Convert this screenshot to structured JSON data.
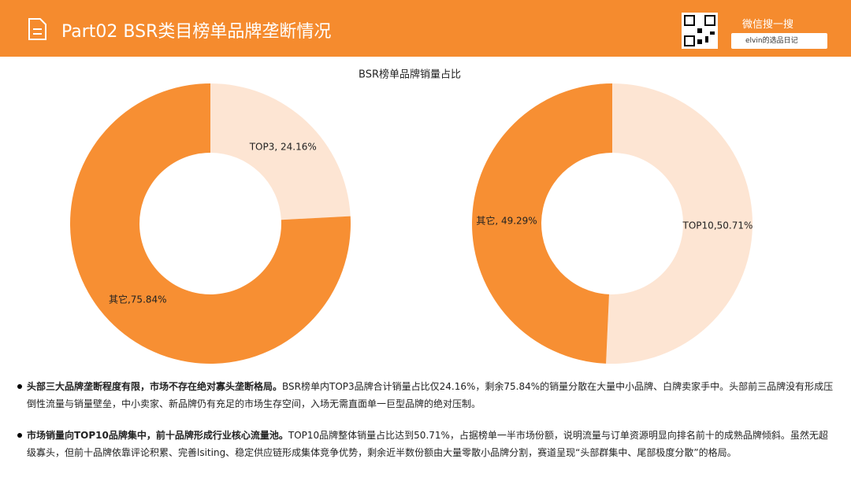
{
  "header": {
    "title": "Part02 BSR类目榜单品牌垄断情况",
    "wechat": "微信搜一搜",
    "search": "elvin的选品日记"
  },
  "chart_data": [
    {
      "type": "pie",
      "title": "BSR榜单品牌销量占比",
      "values": [
        24.16,
        75.84
      ],
      "value_labels": [
        "TOP3, 24.16%",
        "其它,75.84%"
      ],
      "colors": [
        "#fde5d3",
        "#f78f33"
      ]
    },
    {
      "type": "pie",
      "values": [
        50.71,
        49.29
      ],
      "value_labels": [
        "TOP10,50.71%",
        "其它, 49.29%"
      ],
      "colors": [
        "#fde5d3",
        "#f78f33"
      ]
    }
  ],
  "bullets": [
    {
      "bold": "头部三大品牌垄断程度有限，市场不存在绝对寡头垄断格局。",
      "text": "BSR榜单内TOP3品牌合计销量占比仅24.16%，剩余75.84%的销量分散在大量中小品牌、白牌卖家手中。头部前三品牌没有形成压倒性流量与销量壁垒，中小卖家、新品牌仍有充足的市场生存空间，入场无需直面单一巨型品牌的绝对压制。"
    },
    {
      "bold": "市场销量向TOP10品牌集中，前十品牌形成行业核心流量池。",
      "text": "TOP10品牌整体销量占比达到50.71%，占据榜单一半市场份额，说明流量与订单资源明显向排名前十的成熟品牌倾斜。虽然无超级寡头，但前十品牌依靠评论积累、完善lsiting、稳定供应链形成集体竞争优势，剩余近半数份额由大量零散小品牌分割，赛道呈现“头部群集中、尾部极度分散”的格局。"
    }
  ]
}
